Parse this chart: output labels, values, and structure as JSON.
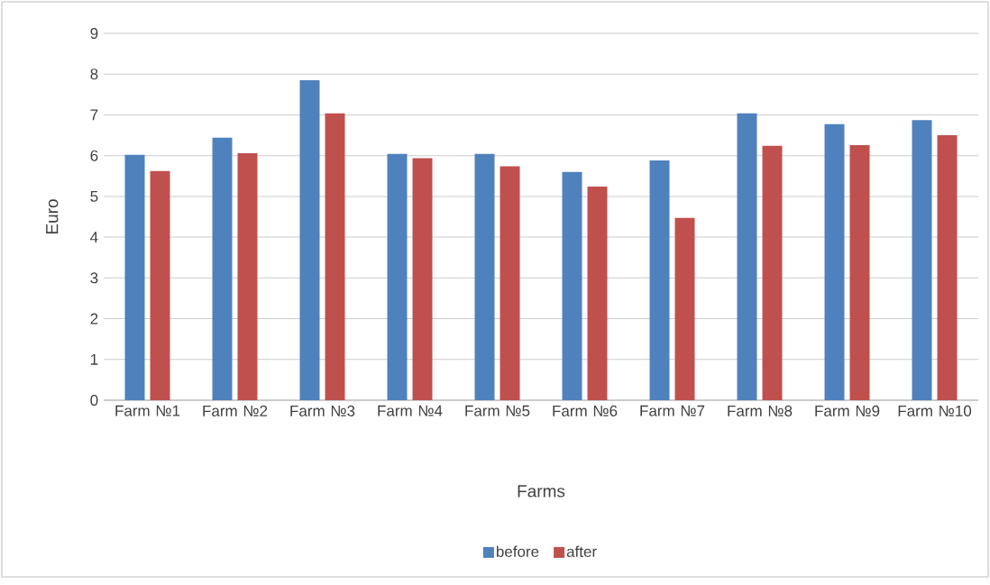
{
  "chart_data": {
    "type": "bar",
    "xlabel": "Farms",
    "ylabel": "Euro",
    "categories": [
      "Farm №1",
      "Farm №2",
      "Farm №3",
      "Farm №4",
      "Farm №5",
      "Farm №6",
      "Farm №7",
      "Farm №8",
      "Farm №9",
      "Farm №10"
    ],
    "series": [
      {
        "name": "before",
        "color": "#4f81bd",
        "values": [
          6.02,
          6.44,
          7.85,
          6.04,
          6.04,
          5.6,
          5.88,
          7.04,
          6.77,
          6.87
        ]
      },
      {
        "name": "after",
        "color": "#c0504d",
        "values": [
          5.62,
          6.06,
          7.04,
          5.94,
          5.74,
          5.24,
          4.47,
          6.24,
          6.26,
          6.5
        ]
      }
    ],
    "ylim": [
      0,
      9
    ],
    "yticks": [
      0,
      1,
      2,
      3,
      4,
      5,
      6,
      7,
      8,
      9
    ],
    "grid": "y",
    "legend": "bottom"
  }
}
